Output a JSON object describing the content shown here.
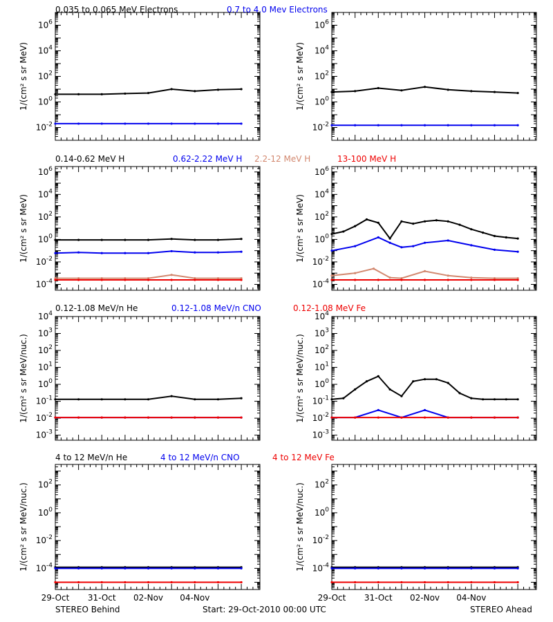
{
  "colors": {
    "black": "#000000",
    "blue": "#0000ee",
    "orange": "#d2876e",
    "red": "#ee0000"
  },
  "footer": {
    "left": "STEREO Behind",
    "center": "Start: 29-Oct-2010 00:00 UTC",
    "right": "STEREO Ahead"
  },
  "x_ticks": [
    "29-Oct",
    "31-Oct",
    "02-Nov",
    "04-Nov"
  ],
  "chart_data": [
    {
      "row": "electrons",
      "spacecraft": "STEREO Behind",
      "type": "scatter",
      "ylabel": "1/(cm² s sr MeV)",
      "yscale": "log",
      "ylim": [
        0.001,
        10000000
      ],
      "series": [
        {
          "name": "0.035 to 0.065 MeV Electrons",
          "color": "#000000",
          "x": [
            0,
            1,
            2,
            3,
            4,
            5,
            6,
            7,
            8
          ],
          "y": [
            4,
            4,
            4,
            4.5,
            5,
            10,
            7,
            9,
            10
          ]
        },
        {
          "name": "0.7 to 4.0 Mev Electrons",
          "color": "#0000ee",
          "x": [
            0,
            1,
            2,
            3,
            4,
            5,
            6,
            7,
            8
          ],
          "y": [
            0.02,
            0.02,
            0.02,
            0.02,
            0.02,
            0.02,
            0.02,
            0.02,
            0.02
          ]
        }
      ]
    },
    {
      "row": "electrons",
      "spacecraft": "STEREO Ahead",
      "type": "scatter",
      "ylabel": "1/(cm² s sr MeV)",
      "yscale": "log",
      "ylim": [
        0.001,
        10000000
      ],
      "series": [
        {
          "name": "0.035 to 0.065 MeV Electrons",
          "color": "#000000",
          "x": [
            0,
            1,
            2,
            3,
            4,
            5,
            6,
            7,
            8
          ],
          "y": [
            6,
            7,
            12,
            8,
            15,
            9,
            7,
            6,
            5
          ]
        },
        {
          "name": "0.7 to 4.0 Mev Electrons",
          "color": "#0000ee",
          "x": [
            0,
            1,
            2,
            3,
            4,
            5,
            6,
            7,
            8
          ],
          "y": [
            0.015,
            0.015,
            0.015,
            0.015,
            0.015,
            0.015,
            0.015,
            0.015,
            0.015
          ]
        }
      ]
    },
    {
      "row": "protons",
      "spacecraft": "STEREO Behind",
      "type": "scatter",
      "ylabel": "1/(cm² s sr MeV)",
      "yscale": "log",
      "ylim": [
        3e-05,
        3000000
      ],
      "series": [
        {
          "name": "0.14-0.62 MeV H",
          "color": "#000000",
          "x": [
            0,
            1,
            2,
            3,
            4,
            5,
            6,
            7,
            8
          ],
          "y": [
            0.9,
            0.9,
            0.9,
            0.9,
            0.9,
            1.1,
            0.9,
            0.9,
            1.1
          ]
        },
        {
          "name": "0.62-2.22 MeV H",
          "color": "#0000ee",
          "x": [
            0,
            1,
            2,
            3,
            4,
            5,
            6,
            7,
            8
          ],
          "y": [
            0.06,
            0.07,
            0.06,
            0.06,
            0.06,
            0.09,
            0.07,
            0.07,
            0.08
          ]
        },
        {
          "name": "2.2-12 MeV H",
          "color": "#d2876e",
          "x": [
            0,
            1,
            2,
            3,
            4,
            5,
            6,
            7,
            8
          ],
          "y": [
            0.00035,
            0.00035,
            0.00035,
            0.00035,
            0.00035,
            0.0007,
            0.00035,
            0.00035,
            0.00035
          ]
        },
        {
          "name": "13-100 MeV H",
          "color": "#ee0000",
          "x": [
            0,
            1,
            2,
            3,
            4,
            5,
            6,
            7,
            8
          ],
          "y": [
            0.00025,
            0.00025,
            0.00025,
            0.00025,
            0.00025,
            0.00025,
            0.00025,
            0.00025,
            0.00025
          ]
        }
      ]
    },
    {
      "row": "protons",
      "spacecraft": "STEREO Ahead",
      "type": "scatter",
      "ylabel": "1/(cm² s sr MeV)",
      "yscale": "log",
      "ylim": [
        3e-05,
        3000000
      ],
      "series": [
        {
          "name": "0.14-0.62 MeV H",
          "color": "#000000",
          "x": [
            0,
            0.5,
            1,
            1.5,
            2,
            2.5,
            3,
            3.5,
            4,
            4.5,
            5,
            5.5,
            6,
            6.5,
            7,
            7.5,
            8
          ],
          "y": [
            3,
            5,
            15,
            60,
            30,
            1.2,
            40,
            25,
            40,
            50,
            40,
            20,
            8,
            4,
            2,
            1.5,
            1.2
          ]
        },
        {
          "name": "0.62-2.22 MeV H",
          "color": "#0000ee",
          "x": [
            0,
            1,
            2,
            2.5,
            3,
            3.5,
            4,
            5,
            6,
            7,
            8
          ],
          "y": [
            0.1,
            0.25,
            1.5,
            0.5,
            0.2,
            0.25,
            0.5,
            0.8,
            0.3,
            0.12,
            0.08
          ]
        },
        {
          "name": "2.2-12 MeV H",
          "color": "#d2876e",
          "x": [
            0,
            1,
            1.8,
            2.5,
            3,
            4,
            5,
            6,
            7,
            8
          ],
          "y": [
            0.0006,
            0.001,
            0.0025,
            0.0004,
            0.00035,
            0.0015,
            0.0006,
            0.0004,
            0.00035,
            0.00035
          ]
        },
        {
          "name": "13-100 MeV H",
          "color": "#ee0000",
          "x": [
            0,
            1,
            2,
            3,
            4,
            5,
            6,
            7,
            8
          ],
          "y": [
            0.00025,
            0.00025,
            0.00025,
            0.00025,
            0.00025,
            0.00025,
            0.00025,
            0.00025,
            0.00025
          ]
        }
      ]
    },
    {
      "row": "heavy-low",
      "spacecraft": "STEREO Behind",
      "type": "scatter",
      "ylabel": "1/(cm² s sr MeV/nuc.)",
      "yscale": "log",
      "ylim": [
        0.0005,
        10000
      ],
      "series": [
        {
          "name": "0.12-1.08 MeV/n He",
          "color": "#000000",
          "x": [
            0,
            1,
            2,
            3,
            4,
            5,
            6,
            7,
            8
          ],
          "y": [
            0.13,
            0.13,
            0.13,
            0.13,
            0.13,
            0.2,
            0.13,
            0.13,
            0.15
          ]
        },
        {
          "name": "0.12-1.08 MeV/n CNO",
          "color": "#0000ee",
          "x": [
            0,
            1,
            2,
            3,
            4,
            5,
            6,
            7,
            8
          ],
          "y": [
            0.011,
            0.011,
            0.011,
            0.011,
            0.011,
            0.011,
            0.011,
            0.011,
            0.011
          ]
        },
        {
          "name": "0.12-1.08 MeV Fe",
          "color": "#ee0000",
          "x": [
            0,
            1,
            2,
            3,
            4,
            5,
            6,
            7,
            8
          ],
          "y": [
            0.011,
            0.011,
            0.011,
            0.011,
            0.011,
            0.011,
            0.011,
            0.011,
            0.011
          ]
        }
      ]
    },
    {
      "row": "heavy-low",
      "spacecraft": "STEREO Ahead",
      "type": "scatter",
      "ylabel": "1/(cm² s sr MeV/nuc.)",
      "yscale": "log",
      "ylim": [
        0.0005,
        10000
      ],
      "series": [
        {
          "name": "0.12-1.08 MeV/n He",
          "color": "#000000",
          "x": [
            0,
            0.5,
            1,
            1.5,
            2,
            2.5,
            3,
            3.5,
            4,
            4.5,
            5,
            5.5,
            6,
            6.5,
            7,
            7.5,
            8
          ],
          "y": [
            0.13,
            0.15,
            0.5,
            1.5,
            3,
            0.5,
            0.2,
            1.5,
            2,
            2,
            1.2,
            0.3,
            0.15,
            0.13,
            0.13,
            0.13,
            0.13
          ]
        },
        {
          "name": "0.12-1.08 MeV/n CNO",
          "color": "#0000ee",
          "x": [
            0,
            1,
            2,
            3,
            4,
            5,
            6,
            7,
            8
          ],
          "y": [
            0.011,
            0.011,
            0.03,
            0.011,
            0.03,
            0.011,
            0.011,
            0.011,
            0.011
          ]
        },
        {
          "name": "0.12-1.08 MeV Fe",
          "color": "#ee0000",
          "x": [
            0,
            1,
            2,
            3,
            4,
            5,
            6,
            7,
            8
          ],
          "y": [
            0.011,
            0.011,
            0.011,
            0.011,
            0.011,
            0.011,
            0.011,
            0.011,
            0.011
          ]
        }
      ]
    },
    {
      "row": "heavy-high",
      "spacecraft": "STEREO Behind",
      "type": "scatter",
      "ylabel": "1/(cm² s sr MeV/nuc.)",
      "yscale": "log",
      "ylim": [
        3e-06,
        3000
      ],
      "series": [
        {
          "name": "4 to 12 MeV/n He",
          "color": "#000000",
          "x": [
            0,
            1,
            2,
            3,
            4,
            5,
            6,
            7,
            8
          ],
          "y": [
            0.00012,
            0.00012,
            0.00012,
            0.00012,
            0.00012,
            0.00012,
            0.00012,
            0.00012,
            0.00012
          ]
        },
        {
          "name": "4 to 12 MeV/n CNO",
          "color": "#0000ee",
          "x": [
            0,
            1,
            2,
            3,
            4,
            5,
            6,
            7,
            8
          ],
          "y": [
            0.0001,
            0.0001,
            0.0001,
            0.0001,
            0.0001,
            0.0001,
            0.0001,
            0.0001,
            0.0001
          ]
        },
        {
          "name": "4 to 12 MeV Fe",
          "color": "#ee0000",
          "x": [
            0,
            1,
            2,
            3,
            4,
            5,
            6,
            7,
            8
          ],
          "y": [
            1e-05,
            1e-05,
            1e-05,
            1e-05,
            1e-05,
            1e-05,
            1e-05,
            1e-05,
            1e-05
          ]
        }
      ]
    },
    {
      "row": "heavy-high",
      "spacecraft": "STEREO Ahead",
      "type": "scatter",
      "ylabel": "1/(cm² s sr MeV/nuc.)",
      "yscale": "log",
      "ylim": [
        3e-06,
        3000
      ],
      "series": [
        {
          "name": "4 to 12 MeV/n He",
          "color": "#000000",
          "x": [
            0,
            1,
            2,
            3,
            4,
            5,
            6,
            7,
            8
          ],
          "y": [
            0.00012,
            0.00012,
            0.00012,
            0.00012,
            0.00012,
            0.00012,
            0.00012,
            0.00012,
            0.00012
          ]
        },
        {
          "name": "4 to 12 MeV/n CNO",
          "color": "#0000ee",
          "x": [
            0,
            1,
            2,
            3,
            4,
            5,
            6,
            7,
            8
          ],
          "y": [
            0.0001,
            0.0001,
            0.0001,
            0.0001,
            0.0001,
            0.0001,
            0.0001,
            0.0001,
            0.0001
          ]
        },
        {
          "name": "4 to 12 MeV Fe",
          "color": "#ee0000",
          "x": [
            0,
            1,
            2,
            3,
            4,
            5,
            6,
            7,
            8
          ],
          "y": [
            1e-05,
            1e-05,
            1e-05,
            1e-05,
            1e-05,
            1e-05,
            1e-05,
            1e-05,
            1e-05
          ]
        }
      ]
    }
  ],
  "y_ticks": {
    "electrons": [
      {
        "v": 1000000.0,
        "b": "10",
        "e": "6"
      },
      {
        "v": 10000.0,
        "b": "10",
        "e": "4"
      },
      {
        "v": 100.0,
        "b": "10",
        "e": "2"
      },
      {
        "v": 1,
        "b": "10",
        "e": "0"
      },
      {
        "v": 0.01,
        "b": "10",
        "e": "-2"
      }
    ],
    "protons": [
      {
        "v": 1000000.0,
        "b": "10",
        "e": "6"
      },
      {
        "v": 10000.0,
        "b": "10",
        "e": "4"
      },
      {
        "v": 100.0,
        "b": "10",
        "e": "2"
      },
      {
        "v": 1,
        "b": "10",
        "e": "0"
      },
      {
        "v": 0.01,
        "b": "10",
        "e": "-2"
      },
      {
        "v": 0.0001,
        "b": "10",
        "e": "-4"
      }
    ],
    "heavy-low": [
      {
        "v": 10000.0,
        "b": "10",
        "e": "4"
      },
      {
        "v": 1000.0,
        "b": "10",
        "e": "3"
      },
      {
        "v": 100.0,
        "b": "10",
        "e": "2"
      },
      {
        "v": 10.0,
        "b": "10",
        "e": "1"
      },
      {
        "v": 1,
        "b": "10",
        "e": "0"
      },
      {
        "v": 0.1,
        "b": "10",
        "e": "-1"
      },
      {
        "v": 0.01,
        "b": "10",
        "e": "-2"
      },
      {
        "v": 0.001,
        "b": "10",
        "e": "-3"
      }
    ],
    "heavy-high": [
      {
        "v": 100.0,
        "b": "10",
        "e": "2"
      },
      {
        "v": 1,
        "b": "10",
        "e": "0"
      },
      {
        "v": 0.01,
        "b": "10",
        "e": "-2"
      },
      {
        "v": 0.0001,
        "b": "10",
        "e": "-4"
      }
    ]
  }
}
